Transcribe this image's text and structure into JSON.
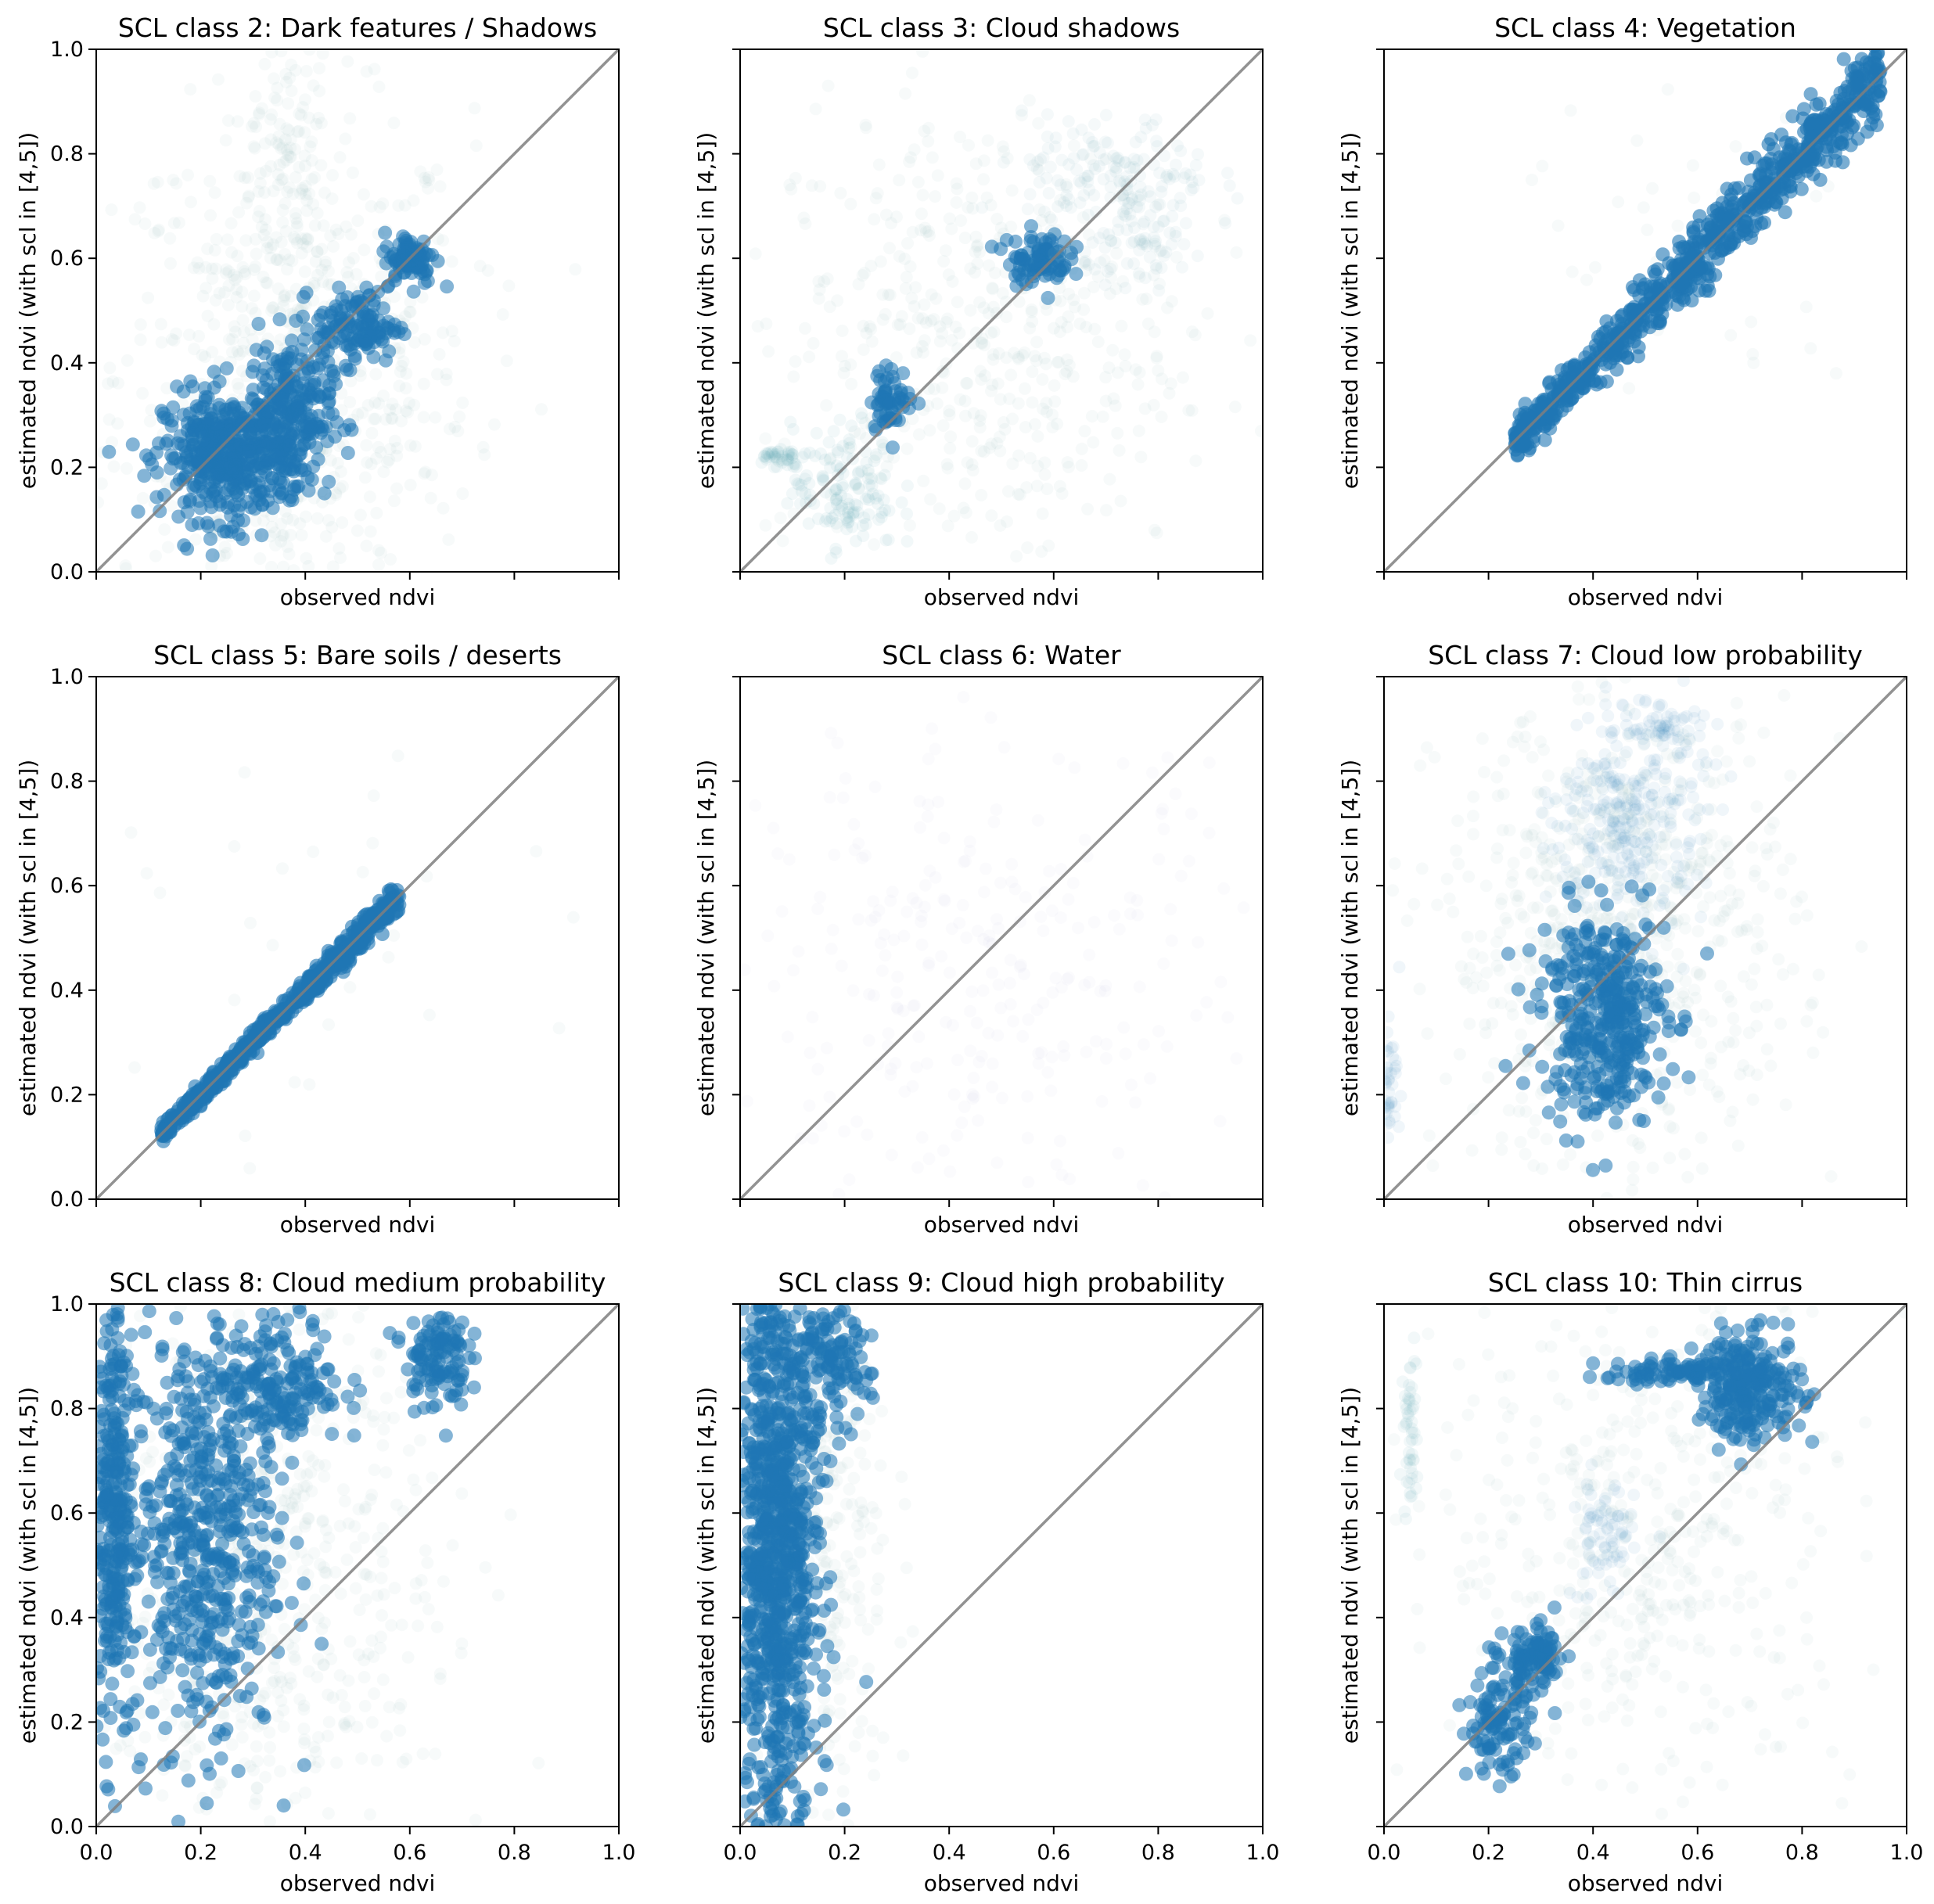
{
  "chart_data": [
    {
      "type": "scatter",
      "title": "SCL class 2: Dark features / Shadows",
      "xlabel": "observed ndvi",
      "ylabel": "estimated ndvi (with scl in [4,5])",
      "xlim": [
        0,
        1
      ],
      "ylim": [
        0,
        1
      ],
      "xticks": [
        0.0,
        0.2,
        0.4,
        0.6,
        0.8,
        1.0
      ],
      "yticks": [
        0.0,
        0.2,
        0.4,
        0.6,
        0.8,
        1.0
      ],
      "show_xtick_labels": false,
      "show_ytick_labels": true,
      "reference_line": [
        [
          0,
          0
        ],
        [
          1,
          1
        ]
      ],
      "grid": false,
      "clusters": [
        {
          "x": 0.38,
          "y": 0.38,
          "sx": 0.17,
          "sy": 0.25,
          "n": 750,
          "color": "#9ec4c2"
        },
        {
          "x": 0.36,
          "y": 0.82,
          "sx": 0.03,
          "sy": 0.1,
          "n": 80,
          "color": "#9ec4c2"
        },
        {
          "x": 0.25,
          "y": 0.22,
          "sx": 0.06,
          "sy": 0.06,
          "n": 480,
          "color": "#1f77b4"
        },
        {
          "x": 0.37,
          "y": 0.3,
          "sx": 0.04,
          "sy": 0.07,
          "n": 260,
          "color": "#1f77b4"
        },
        {
          "x": 0.5,
          "y": 0.47,
          "sx": 0.04,
          "sy": 0.035,
          "n": 130,
          "color": "#1f77b4"
        },
        {
          "x": 0.6,
          "y": 0.6,
          "sx": 0.025,
          "sy": 0.025,
          "n": 90,
          "color": "#1f77b4"
        }
      ]
    },
    {
      "type": "scatter",
      "title": "SCL class 3: Cloud shadows",
      "xlabel": "observed ndvi",
      "ylabel": "estimated ndvi (with scl in [4,5])",
      "xlim": [
        0,
        1
      ],
      "ylim": [
        0,
        1
      ],
      "xticks": [
        0.0,
        0.2,
        0.4,
        0.6,
        0.8,
        1.0
      ],
      "yticks": [
        0.0,
        0.2,
        0.4,
        0.6,
        0.8,
        1.0
      ],
      "show_xtick_labels": false,
      "show_ytick_labels": false,
      "reference_line": [
        [
          0,
          0
        ],
        [
          1,
          1
        ]
      ],
      "grid": false,
      "clusters": [
        {
          "x": 0.45,
          "y": 0.45,
          "sx": 0.2,
          "sy": 0.22,
          "n": 500,
          "color": "#9ec4c2"
        },
        {
          "x": 0.2,
          "y": 0.16,
          "sx": 0.05,
          "sy": 0.06,
          "n": 140,
          "color": "#5fa0b8"
        },
        {
          "x": 0.29,
          "y": 0.33,
          "sx": 0.02,
          "sy": 0.03,
          "n": 60,
          "color": "#1f77b4"
        },
        {
          "x": 0.57,
          "y": 0.6,
          "sx": 0.03,
          "sy": 0.025,
          "n": 90,
          "color": "#1f77b4"
        },
        {
          "x": 0.07,
          "y": 0.22,
          "sx": 0.02,
          "sy": 0.01,
          "n": 40,
          "color": "#5fa0b8"
        },
        {
          "x": 0.72,
          "y": 0.75,
          "sx": 0.09,
          "sy": 0.06,
          "n": 160,
          "color": "#7fb3bf"
        },
        {
          "x": 0.78,
          "y": 0.62,
          "sx": 0.06,
          "sy": 0.03,
          "n": 60,
          "color": "#7fb3bf"
        }
      ]
    },
    {
      "type": "scatter",
      "title": "SCL class 4: Vegetation",
      "xlabel": "observed ndvi",
      "ylabel": "estimated ndvi (with scl in [4,5])",
      "xlim": [
        0,
        1
      ],
      "ylim": [
        0,
        1
      ],
      "xticks": [
        0.0,
        0.2,
        0.4,
        0.6,
        0.8,
        1.0
      ],
      "yticks": [
        0.0,
        0.2,
        0.4,
        0.6,
        0.8,
        1.0
      ],
      "show_xtick_labels": false,
      "show_ytick_labels": false,
      "reference_line": [
        [
          0,
          0
        ],
        [
          1,
          1
        ]
      ],
      "grid": false,
      "diagonal_band": {
        "x0": 0.25,
        "x1": 0.95,
        "width": 0.025,
        "n": 900,
        "color": "#1f77b4"
      },
      "clusters": [
        {
          "x": 0.6,
          "y": 0.6,
          "sx": 0.18,
          "sy": 0.18,
          "n": 40,
          "color": "#9ec4c2"
        }
      ]
    },
    {
      "type": "scatter",
      "title": "SCL class 5: Bare soils / deserts",
      "xlabel": "observed ndvi",
      "ylabel": "estimated ndvi (with scl in [4,5])",
      "xlim": [
        0,
        1
      ],
      "ylim": [
        0,
        1
      ],
      "xticks": [
        0.0,
        0.2,
        0.4,
        0.6,
        0.8,
        1.0
      ],
      "yticks": [
        0.0,
        0.2,
        0.4,
        0.6,
        0.8,
        1.0
      ],
      "show_xtick_labels": false,
      "show_ytick_labels": true,
      "reference_line": [
        [
          0,
          0
        ],
        [
          1,
          1
        ]
      ],
      "grid": false,
      "diagonal_band": {
        "x0": 0.12,
        "x1": 0.58,
        "width": 0.012,
        "n": 700,
        "color": "#1f77b4"
      },
      "clusters": [
        {
          "x": 0.45,
          "y": 0.45,
          "sx": 0.18,
          "sy": 0.18,
          "n": 30,
          "color": "#9ec4c2"
        }
      ]
    },
    {
      "type": "scatter",
      "title": "SCL class 6: Water",
      "xlabel": "observed ndvi",
      "ylabel": "estimated ndvi (with scl in [4,5])",
      "xlim": [
        0,
        1
      ],
      "ylim": [
        0,
        1
      ],
      "xticks": [
        0.0,
        0.2,
        0.4,
        0.6,
        0.8,
        1.0
      ],
      "yticks": [
        0.0,
        0.2,
        0.4,
        0.6,
        0.8,
        1.0
      ],
      "show_xtick_labels": false,
      "show_ytick_labels": false,
      "reference_line": [
        [
          0,
          0
        ],
        [
          1,
          1
        ]
      ],
      "grid": false,
      "clusters": [
        {
          "x": 0.45,
          "y": 0.4,
          "sx": 0.28,
          "sy": 0.25,
          "n": 320,
          "color": "#c8d0e0"
        }
      ]
    },
    {
      "type": "scatter",
      "title": "SCL class 7: Cloud low probability",
      "xlabel": "observed ndvi",
      "ylabel": "estimated ndvi (with scl in [4,5])",
      "xlim": [
        0,
        1
      ],
      "ylim": [
        0,
        1
      ],
      "xticks": [
        0.0,
        0.2,
        0.4,
        0.6,
        0.8,
        1.0
      ],
      "yticks": [
        0.0,
        0.2,
        0.4,
        0.6,
        0.8,
        1.0
      ],
      "show_xtick_labels": false,
      "show_ytick_labels": false,
      "reference_line": [
        [
          0,
          0
        ],
        [
          1,
          1
        ]
      ],
      "grid": false,
      "clusters": [
        {
          "x": 0.45,
          "y": 0.5,
          "sx": 0.17,
          "sy": 0.22,
          "n": 700,
          "color": "#9ec4c2"
        },
        {
          "x": 0.42,
          "y": 0.35,
          "sx": 0.06,
          "sy": 0.1,
          "n": 400,
          "color": "#1f77b4"
        },
        {
          "x": 0.47,
          "y": 0.72,
          "sx": 0.07,
          "sy": 0.1,
          "n": 300,
          "color": "#3d88bd"
        },
        {
          "x": 0.52,
          "y": 0.9,
          "sx": 0.05,
          "sy": 0.02,
          "n": 60,
          "color": "#3d88bd"
        },
        {
          "x": 0.01,
          "y": 0.23,
          "sx": 0.01,
          "sy": 0.05,
          "n": 50,
          "color": "#3d88bd"
        }
      ]
    },
    {
      "type": "scatter",
      "title": "SCL class 8: Cloud medium probability",
      "xlabel": "observed ndvi",
      "ylabel": "estimated ndvi (with scl in [4,5])",
      "xlim": [
        0,
        1
      ],
      "ylim": [
        0,
        1
      ],
      "xticks": [
        0.0,
        0.2,
        0.4,
        0.6,
        0.8,
        1.0
      ],
      "yticks": [
        0.0,
        0.2,
        0.4,
        0.6,
        0.8,
        1.0
      ],
      "show_xtick_labels": true,
      "show_ytick_labels": true,
      "reference_line": [
        [
          0,
          0
        ],
        [
          1,
          1
        ]
      ],
      "grid": false,
      "clusters": [
        {
          "x": 0.3,
          "y": 0.5,
          "sx": 0.18,
          "sy": 0.28,
          "n": 700,
          "color": "#9ec4c2"
        },
        {
          "x": 0.03,
          "y": 0.6,
          "sx": 0.02,
          "sy": 0.22,
          "n": 350,
          "color": "#1f77b4"
        },
        {
          "x": 0.2,
          "y": 0.55,
          "sx": 0.07,
          "sy": 0.2,
          "n": 550,
          "color": "#1f77b4"
        },
        {
          "x": 0.35,
          "y": 0.85,
          "sx": 0.06,
          "sy": 0.06,
          "n": 200,
          "color": "#1f77b4"
        },
        {
          "x": 0.65,
          "y": 0.9,
          "sx": 0.03,
          "sy": 0.05,
          "n": 120,
          "color": "#1f77b4"
        }
      ]
    },
    {
      "type": "scatter",
      "title": "SCL class 9: Cloud high probability",
      "xlabel": "observed ndvi",
      "ylabel": "estimated ndvi (with scl in [4,5])",
      "xlim": [
        0,
        1
      ],
      "ylim": [
        0,
        1
      ],
      "xticks": [
        0.0,
        0.2,
        0.4,
        0.6,
        0.8,
        1.0
      ],
      "yticks": [
        0.0,
        0.2,
        0.4,
        0.6,
        0.8,
        1.0
      ],
      "show_xtick_labels": true,
      "show_ytick_labels": false,
      "reference_line": [
        [
          0,
          0
        ],
        [
          1,
          1
        ]
      ],
      "grid": false,
      "clusters": [
        {
          "x": 0.15,
          "y": 0.55,
          "sx": 0.07,
          "sy": 0.3,
          "n": 350,
          "color": "#9ec4c2"
        },
        {
          "x": 0.07,
          "y": 0.55,
          "sx": 0.04,
          "sy": 0.3,
          "n": 1100,
          "color": "#1f77b4"
        },
        {
          "x": 0.17,
          "y": 0.88,
          "sx": 0.04,
          "sy": 0.05,
          "n": 120,
          "color": "#1f77b4"
        }
      ]
    },
    {
      "type": "scatter",
      "title": "SCL class 10: Thin cirrus",
      "xlabel": "observed ndvi",
      "ylabel": "estimated ndvi (with scl in [4,5])",
      "xlim": [
        0,
        1
      ],
      "ylim": [
        0,
        1
      ],
      "xticks": [
        0.0,
        0.2,
        0.4,
        0.6,
        0.8,
        1.0
      ],
      "yticks": [
        0.0,
        0.2,
        0.4,
        0.6,
        0.8,
        1.0
      ],
      "show_xtick_labels": true,
      "show_ytick_labels": false,
      "reference_line": [
        [
          0,
          0
        ],
        [
          1,
          1
        ]
      ],
      "grid": false,
      "clusters": [
        {
          "x": 0.5,
          "y": 0.55,
          "sx": 0.2,
          "sy": 0.25,
          "n": 450,
          "color": "#9ec4c2"
        },
        {
          "x": 0.22,
          "y": 0.2,
          "sx": 0.03,
          "sy": 0.05,
          "n": 120,
          "color": "#1f77b4"
        },
        {
          "x": 0.29,
          "y": 0.32,
          "sx": 0.03,
          "sy": 0.03,
          "n": 100,
          "color": "#1f77b4"
        },
        {
          "x": 0.42,
          "y": 0.55,
          "sx": 0.03,
          "sy": 0.06,
          "n": 80,
          "color": "#3d88bd"
        },
        {
          "x": 0.7,
          "y": 0.84,
          "sx": 0.05,
          "sy": 0.05,
          "n": 260,
          "color": "#1f77b4"
        },
        {
          "x": 0.55,
          "y": 0.87,
          "sx": 0.08,
          "sy": 0.01,
          "n": 80,
          "color": "#1f77b4"
        },
        {
          "x": 0.05,
          "y": 0.75,
          "sx": 0.006,
          "sy": 0.08,
          "n": 50,
          "color": "#5fa0b8"
        }
      ]
    }
  ]
}
